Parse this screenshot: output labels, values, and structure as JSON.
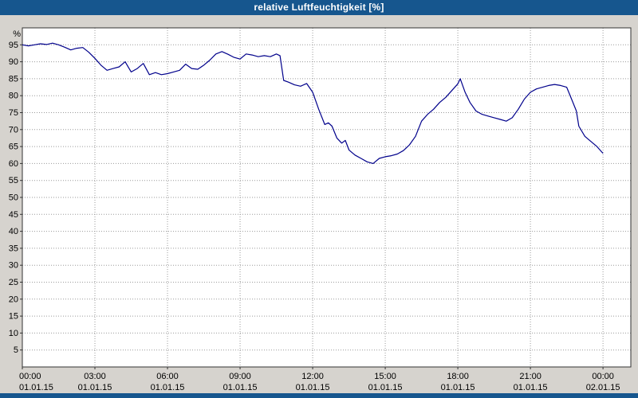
{
  "window": {
    "title": "relative Luftfeuchtigkeit [%]"
  },
  "colors": {
    "titlebar": "#16568e",
    "background": "#d6d3ce",
    "plot_background": "#ffffff",
    "grid": "#9a9a9a",
    "border": "#333333",
    "line": "#00008b",
    "text": "#000000"
  },
  "chart_data": {
    "type": "line",
    "title": "relative Luftfeuchtigkeit [%]",
    "ylabel": "%",
    "xlabel": "",
    "grid": "dotted",
    "legend_position": "none",
    "ylim": [
      0,
      100
    ],
    "y_ticks": [
      5,
      10,
      15,
      20,
      25,
      30,
      35,
      40,
      45,
      50,
      55,
      60,
      65,
      70,
      75,
      80,
      85,
      90,
      95
    ],
    "xlim": [
      0,
      25.15
    ],
    "x_ticks": [
      {
        "hour": 0,
        "time": "00:00",
        "date": "01.01.15"
      },
      {
        "hour": 3,
        "time": "03:00",
        "date": "01.01.15"
      },
      {
        "hour": 6,
        "time": "06:00",
        "date": "01.01.15"
      },
      {
        "hour": 9,
        "time": "09:00",
        "date": "01.01.15"
      },
      {
        "hour": 12,
        "time": "12:00",
        "date": "01.01.15"
      },
      {
        "hour": 15,
        "time": "15:00",
        "date": "01.01.15"
      },
      {
        "hour": 18,
        "time": "18:00",
        "date": "01.01.15"
      },
      {
        "hour": 21,
        "time": "21:00",
        "date": "01.01.15"
      },
      {
        "hour": 24,
        "time": "00:00",
        "date": "02.01.15"
      }
    ],
    "series_name": "relative Luftfeuchtigkeit",
    "unit": "%",
    "points": [
      [
        0,
        95
      ],
      [
        0.25,
        94.7
      ],
      [
        0.5,
        95
      ],
      [
        0.75,
        95.3
      ],
      [
        1,
        95.1
      ],
      [
        1.25,
        95.5
      ],
      [
        1.5,
        95
      ],
      [
        1.75,
        94.3
      ],
      [
        2,
        93.5
      ],
      [
        2.25,
        94
      ],
      [
        2.5,
        94.2
      ],
      [
        2.75,
        92.8
      ],
      [
        3,
        91
      ],
      [
        3.25,
        89
      ],
      [
        3.5,
        87.5
      ],
      [
        3.75,
        88
      ],
      [
        4,
        88.5
      ],
      [
        4.25,
        90
      ],
      [
        4.5,
        87
      ],
      [
        4.75,
        88
      ],
      [
        5,
        89.5
      ],
      [
        5.25,
        86.2
      ],
      [
        5.5,
        86.8
      ],
      [
        5.75,
        86.2
      ],
      [
        6,
        86.5
      ],
      [
        6.25,
        87
      ],
      [
        6.5,
        87.5
      ],
      [
        6.75,
        89.3
      ],
      [
        7,
        88
      ],
      [
        7.25,
        87.8
      ],
      [
        7.5,
        89
      ],
      [
        7.75,
        90.5
      ],
      [
        8,
        92.3
      ],
      [
        8.25,
        93
      ],
      [
        8.5,
        92.2
      ],
      [
        8.75,
        91.3
      ],
      [
        9,
        90.8
      ],
      [
        9.25,
        92.3
      ],
      [
        9.5,
        92
      ],
      [
        9.75,
        91.5
      ],
      [
        10,
        91.8
      ],
      [
        10.25,
        91.5
      ],
      [
        10.5,
        92.3
      ],
      [
        10.65,
        91.8
      ],
      [
        10.8,
        84.5
      ],
      [
        11,
        84
      ],
      [
        11.25,
        83.2
      ],
      [
        11.5,
        82.8
      ],
      [
        11.75,
        83.6
      ],
      [
        12,
        81
      ],
      [
        12.25,
        76
      ],
      [
        12.5,
        71.5
      ],
      [
        12.65,
        72
      ],
      [
        12.8,
        71
      ],
      [
        13,
        67.5
      ],
      [
        13.2,
        66
      ],
      [
        13.35,
        66.8
      ],
      [
        13.5,
        64
      ],
      [
        13.75,
        62.5
      ],
      [
        14,
        61.5
      ],
      [
        14.25,
        60.5
      ],
      [
        14.5,
        60
      ],
      [
        14.75,
        61.5
      ],
      [
        15,
        62
      ],
      [
        15.25,
        62.3
      ],
      [
        15.5,
        62.8
      ],
      [
        15.75,
        63.8
      ],
      [
        16,
        65.5
      ],
      [
        16.25,
        68
      ],
      [
        16.5,
        72.5
      ],
      [
        16.75,
        74.5
      ],
      [
        17,
        76
      ],
      [
        17.25,
        78
      ],
      [
        17.5,
        79.5
      ],
      [
        17.75,
        81.5
      ],
      [
        18,
        83.5
      ],
      [
        18.1,
        85
      ],
      [
        18.3,
        81
      ],
      [
        18.5,
        78
      ],
      [
        18.75,
        75.5
      ],
      [
        19,
        74.5
      ],
      [
        19.25,
        74
      ],
      [
        19.5,
        73.5
      ],
      [
        19.75,
        73
      ],
      [
        20,
        72.5
      ],
      [
        20.25,
        73.5
      ],
      [
        20.5,
        76
      ],
      [
        20.75,
        79
      ],
      [
        21,
        81
      ],
      [
        21.25,
        82
      ],
      [
        21.5,
        82.5
      ],
      [
        21.75,
        83
      ],
      [
        22,
        83.3
      ],
      [
        22.25,
        83
      ],
      [
        22.5,
        82.5
      ],
      [
        22.7,
        79
      ],
      [
        22.9,
        75.5
      ],
      [
        23,
        71
      ],
      [
        23.25,
        68
      ],
      [
        23.5,
        66.5
      ],
      [
        23.75,
        65
      ],
      [
        24,
        63
      ]
    ]
  }
}
